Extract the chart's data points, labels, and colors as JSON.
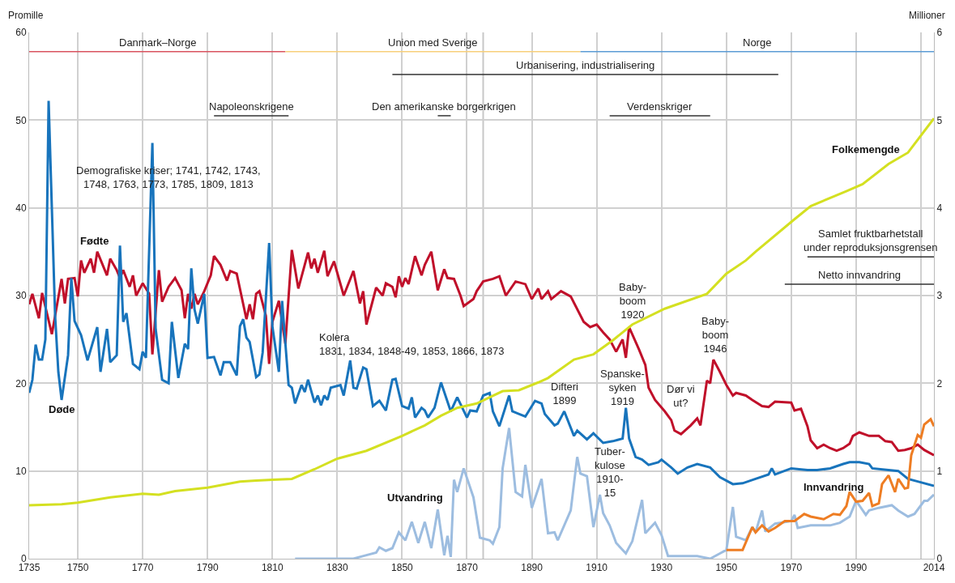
{
  "chart_data": {
    "type": "line",
    "ylabel": "Promille",
    "y2label": "Millioner",
    "xlim": [
      1735,
      2014
    ],
    "xticks": [
      1735,
      1750,
      1770,
      1790,
      1810,
      1830,
      1850,
      1870,
      1890,
      1910,
      1930,
      1950,
      1970,
      1990,
      {
        "value": 2010,
        "label": null
      },
      2014
    ],
    "ylim": [
      0,
      60
    ],
    "yticks": [
      0,
      10,
      20,
      30,
      40,
      50,
      60
    ],
    "y2lim": [
      0,
      6
    ],
    "y2ticks": [
      0,
      1,
      2,
      3,
      4,
      5,
      6
    ],
    "grid": true,
    "legend": false,
    "marker": "none",
    "line_style": "solid",
    "series": [
      {
        "name": "Fødte",
        "color": "#c0102a",
        "x": [
          1735,
          1736,
          1738,
          1739,
          1742,
          1745,
          1746,
          1747,
          1749,
          1750,
          1751,
          1752,
          1754,
          1755,
          1756,
          1759,
          1760,
          1762,
          1763,
          1764,
          1766,
          1767,
          1768,
          1770,
          1772,
          1773,
          1775,
          1776,
          1778,
          1780,
          1782,
          1783,
          1784,
          1785,
          1786,
          1787,
          1789,
          1791,
          1792,
          1794,
          1796,
          1797,
          1799,
          1802,
          1803,
          1804,
          1805,
          1806,
          1808,
          1809,
          1810,
          1812,
          1814,
          1816,
          1818,
          1821,
          1822,
          1823,
          1824,
          1826,
          1827,
          1829,
          1832,
          1835,
          1837,
          1838,
          1839,
          1842,
          1844,
          1845,
          1847,
          1848,
          1849,
          1850,
          1851,
          1852,
          1854,
          1856,
          1857,
          1859,
          1861,
          1863,
          1864,
          1866,
          1868,
          1869,
          1872,
          1873,
          1875,
          1878,
          1880,
          1882,
          1885,
          1888,
          1890,
          1892,
          1893,
          1895,
          1896,
          1899,
          1902,
          1906,
          1908,
          1910,
          1912,
          1914,
          1916,
          1918,
          1919,
          1920,
          1923,
          1925,
          1926,
          1928,
          1931,
          1933,
          1934,
          1936,
          1939,
          1941,
          1942,
          1944,
          1945,
          1946,
          1948,
          1950,
          1952,
          1953,
          1956,
          1958,
          1961,
          1963,
          1965,
          1970,
          1971,
          1973,
          1975,
          1976,
          1978,
          1980,
          1982,
          1984,
          1986,
          1988,
          1989,
          1991,
          1994,
          1997,
          1999,
          2001,
          2003,
          2005,
          2007,
          2009,
          2011,
          2014
        ],
        "values": [
          29.0,
          30.2,
          27.4,
          30.3,
          25.6,
          31.9,
          29.1,
          31.9,
          32.0,
          29.9,
          34.0,
          32.6,
          34.2,
          32.6,
          35.0,
          32.3,
          34.2,
          32.9,
          32.0,
          32.9,
          31.0,
          32.3,
          30.0,
          31.4,
          30.2,
          23.3,
          32.9,
          29.3,
          31.0,
          32.0,
          30.6,
          27.4,
          30.2,
          28.5,
          30.2,
          29.0,
          30.5,
          32.3,
          34.5,
          33.5,
          31.7,
          32.8,
          32.5,
          27.3,
          29.0,
          27.3,
          30.2,
          30.5,
          27.7,
          22.2,
          27.0,
          29.4,
          24.5,
          35.2,
          30.8,
          34.9,
          33.1,
          34.2,
          32.6,
          35.1,
          32.2,
          33.9,
          30.0,
          32.8,
          29.1,
          30.5,
          26.7,
          30.9,
          30.0,
          31.4,
          31.0,
          29.8,
          32.2,
          31.0,
          32.0,
          31.3,
          34.5,
          32.3,
          33.5,
          35.0,
          30.6,
          33.0,
          32.0,
          31.9,
          30.0,
          28.8,
          29.6,
          30.5,
          31.6,
          31.9,
          32.2,
          30.0,
          31.6,
          31.3,
          29.6,
          30.8,
          29.6,
          30.5,
          29.6,
          30.5,
          29.9,
          27.0,
          26.4,
          26.7,
          25.8,
          25.0,
          23.6,
          25.0,
          22.9,
          26.4,
          23.9,
          22.1,
          19.5,
          18.1,
          16.8,
          15.8,
          14.6,
          14.2,
          15.2,
          16.0,
          15.2,
          20.3,
          20.0,
          22.7,
          21.3,
          19.8,
          18.6,
          18.9,
          18.6,
          18.1,
          17.4,
          17.3,
          17.9,
          17.8,
          16.9,
          17.1,
          15.1,
          13.5,
          12.6,
          13.0,
          12.6,
          12.3,
          12.6,
          13.1,
          14.0,
          14.4,
          14.0,
          14.0,
          13.4,
          13.3,
          12.3,
          12.4,
          12.6,
          13.0,
          12.4,
          11.8
        ]
      },
      {
        "name": "Døde",
        "color": "#1874bc",
        "x": [
          1735,
          1736,
          1737,
          1738,
          1739,
          1740,
          1741,
          1743,
          1744,
          1745,
          1747,
          1748,
          1749,
          1751,
          1753,
          1756,
          1757,
          1759,
          1760,
          1762,
          1763,
          1764,
          1765,
          1767,
          1769,
          1770,
          1771,
          1773,
          1774,
          1776,
          1778,
          1779,
          1781,
          1783,
          1784,
          1785,
          1786,
          1787,
          1789,
          1790,
          1792,
          1794,
          1795,
          1797,
          1799,
          1800,
          1801,
          1802,
          1803,
          1805,
          1806,
          1807,
          1809,
          1810,
          1812,
          1813,
          1815,
          1816,
          1817,
          1819,
          1820,
          1821,
          1823,
          1824,
          1825,
          1826,
          1827,
          1828,
          1831,
          1832,
          1834,
          1835,
          1836,
          1838,
          1839,
          1841,
          1843,
          1845,
          1847,
          1848,
          1850,
          1852,
          1853,
          1854,
          1856,
          1857,
          1858,
          1860,
          1862,
          1865,
          1867,
          1870,
          1871,
          1873,
          1875,
          1877,
          1878,
          1880,
          1883,
          1884,
          1888,
          1891,
          1893,
          1894,
          1897,
          1898,
          1900,
          1903,
          1904,
          1907,
          1909,
          1912,
          1915,
          1918,
          1919,
          1920,
          1922,
          1924,
          1926,
          1929,
          1930,
          1933,
          1935,
          1938,
          1941,
          1945,
          1948,
          1952,
          1955,
          1959,
          1963,
          1964,
          1965,
          1970,
          1975,
          1978,
          1982,
          1986,
          1988,
          1991,
          1994,
          1995,
          2000,
          2003,
          2006,
          2009,
          2014
        ],
        "values": [
          18.9,
          20.4,
          24.4,
          22.7,
          22.7,
          25.0,
          52.2,
          27.7,
          21.3,
          18.1,
          23.2,
          32.0,
          27.1,
          25.5,
          22.6,
          26.4,
          21.3,
          26.2,
          22.4,
          23.2,
          35.7,
          27.0,
          28.0,
          22.2,
          21.6,
          23.6,
          22.9,
          47.4,
          26.2,
          20.4,
          20.0,
          27.0,
          20.6,
          24.5,
          23.9,
          33.1,
          28.4,
          26.8,
          30.2,
          22.9,
          23.0,
          20.9,
          22.4,
          22.4,
          20.9,
          26.5,
          27.3,
          25.2,
          24.7,
          20.7,
          21.0,
          23.5,
          36.0,
          26.5,
          21.3,
          29.4,
          19.8,
          19.5,
          17.7,
          19.8,
          19.0,
          20.4,
          17.8,
          18.6,
          17.5,
          18.6,
          18.1,
          19.5,
          19.8,
          18.6,
          22.6,
          19.5,
          19.4,
          21.8,
          21.6,
          17.4,
          18.0,
          16.9,
          20.4,
          20.5,
          17.4,
          17.1,
          18.4,
          16.1,
          17.2,
          16.9,
          16.1,
          17.2,
          20.1,
          16.8,
          18.4,
          16.1,
          16.9,
          16.8,
          18.6,
          18.9,
          16.8,
          15.1,
          18.6,
          16.8,
          16.2,
          18.0,
          17.7,
          16.5,
          15.2,
          15.4,
          16.8,
          14.0,
          14.6,
          13.6,
          14.3,
          13.2,
          13.4,
          13.7,
          17.2,
          13.7,
          11.6,
          11.3,
          10.7,
          11.0,
          11.3,
          10.4,
          9.7,
          10.4,
          10.8,
          10.4,
          9.3,
          8.5,
          8.6,
          9.1,
          9.6,
          10.3,
          9.6,
          10.3,
          10.1,
          10.1,
          10.3,
          10.8,
          11.0,
          11.0,
          10.8,
          10.3,
          10.1,
          10.0,
          9.1,
          8.8,
          8.3
        ]
      },
      {
        "name": "Folkemengde",
        "color": "#d4e021",
        "axis": "y2",
        "x": [
          1735,
          1745,
          1750,
          1760,
          1770,
          1775,
          1780,
          1790,
          1800,
          1805,
          1810,
          1816,
          1823,
          1830,
          1839,
          1850,
          1857,
          1862,
          1867,
          1873,
          1881,
          1886,
          1892,
          1895,
          1903,
          1909,
          1915,
          1921,
          1931,
          1944,
          1950,
          1956,
          1959,
          1971,
          1976,
          1987,
          1992,
          2000,
          2006,
          2014
        ],
        "values": [
          0.61,
          0.62,
          0.64,
          0.7,
          0.74,
          0.73,
          0.77,
          0.81,
          0.88,
          0.89,
          0.9,
          0.91,
          1.02,
          1.14,
          1.23,
          1.4,
          1.52,
          1.63,
          1.72,
          1.77,
          1.91,
          1.92,
          2.01,
          2.06,
          2.27,
          2.33,
          2.49,
          2.67,
          2.85,
          3.02,
          3.25,
          3.4,
          3.5,
          3.87,
          4.02,
          4.19,
          4.27,
          4.5,
          4.63,
          5.02
        ]
      },
      {
        "name": "Utvandring",
        "color": "#9dbde0",
        "x": [
          1817,
          1835,
          1839,
          1842,
          1843,
          1845,
          1847,
          1849,
          1851,
          1853,
          1855,
          1857,
          1859,
          1861,
          1863,
          1864,
          1865,
          1866,
          1867,
          1869,
          1872,
          1874,
          1877,
          1878,
          1880,
          1881,
          1883,
          1885,
          1887,
          1888,
          1890,
          1893,
          1895,
          1897,
          1898,
          1902,
          1904,
          1905,
          1907,
          1909,
          1911,
          1912,
          1914,
          1916,
          1919,
          1921,
          1924,
          1925,
          1928,
          1930,
          1932,
          1941,
          1945,
          1948,
          1950,
          1952,
          1953,
          1956,
          1958,
          1959,
          1961,
          1962,
          1965,
          1970,
          1971,
          1972,
          1976,
          1982,
          1985,
          1988,
          1990,
          1993,
          1994,
          1997,
          2001,
          2003,
          2006,
          2008,
          2011,
          2012,
          2014
        ],
        "values": [
          0,
          0,
          0.4,
          0.7,
          1.3,
          0.9,
          1.2,
          3.0,
          2.1,
          4.2,
          1.8,
          4.2,
          1.2,
          5.6,
          0.4,
          2.6,
          0.2,
          9.0,
          7.6,
          10.3,
          7.0,
          2.4,
          2.1,
          1.7,
          3.6,
          10.3,
          14.9,
          7.6,
          7.1,
          10.7,
          5.8,
          9.1,
          2.9,
          3.0,
          2.1,
          5.5,
          11.6,
          9.7,
          9.4,
          3.6,
          7.3,
          5.2,
          3.8,
          1.8,
          0.6,
          2.0,
          6.7,
          2.9,
          4.1,
          2.7,
          0.3,
          0.3,
          0.0,
          0.6,
          1.0,
          5.9,
          2.5,
          2.1,
          3.6,
          3.0,
          5.5,
          3.1,
          4.0,
          4.3,
          5.0,
          3.5,
          3.8,
          3.8,
          4.1,
          4.8,
          6.6,
          5.0,
          5.5,
          5.8,
          6.1,
          5.5,
          4.8,
          5.1,
          6.6,
          6.6,
          7.3
        ]
      },
      {
        "color": "#d9535f",
        "x": [
          1735,
          1814
        ],
        "values": [
          57.8,
          57.8
        ]
      },
      {
        "color": "#f7cf7a",
        "x": [
          1814,
          1905
        ],
        "values": [
          57.8,
          57.8
        ]
      },
      {
        "color": "#5b9bd5",
        "x": [
          1905,
          2014
        ],
        "values": [
          57.8,
          57.8
        ]
      },
      {
        "color": "#333333",
        "x": [
          1847,
          1966
        ],
        "values": [
          55.2,
          55.2
        ]
      },
      {
        "color": "#333333",
        "x": [
          1792,
          1815
        ],
        "values": [
          50.5,
          50.5
        ]
      },
      {
        "color": "#333333",
        "x": [
          1861,
          1865
        ],
        "values": [
          50.5,
          50.5
        ]
      },
      {
        "color": "#333333",
        "x": [
          1914,
          1945
        ],
        "values": [
          50.5,
          50.5
        ]
      },
      {
        "color": "#333333",
        "x": [
          1975,
          2014
        ],
        "values": [
          34.4,
          34.4
        ]
      },
      {
        "color": "#333333",
        "x": [
          1968,
          2014
        ],
        "values": [
          31.3,
          31.3
        ]
      },
      {
        "name": "Innvandring",
        "color": "#ee7d23",
        "x": [
          1950,
          1955,
          1958,
          1959,
          1961,
          1963,
          1965,
          1968,
          1971,
          1974,
          1976,
          1980,
          1983,
          1985,
          1987,
          1988,
          1990,
          1992,
          1994,
          1995,
          1997,
          1998,
          2000,
          2002,
          2003,
          2005,
          2006,
          2007,
          2009,
          2010,
          2011,
          2013,
          2014
        ],
        "values": [
          1.0,
          1.0,
          3.6,
          3.0,
          3.8,
          3.1,
          3.5,
          4.3,
          4.3,
          5.1,
          4.8,
          4.5,
          5.1,
          5.0,
          6.0,
          7.6,
          6.5,
          6.6,
          7.5,
          6.0,
          6.3,
          8.5,
          9.5,
          7.6,
          9.1,
          8.0,
          8.1,
          11.8,
          14.1,
          13.8,
          15.3,
          15.9,
          15.1
        ]
      }
    ],
    "ref_lines": [
      {
        "axis": "x",
        "value": 1875,
        "label": null,
        "color": "#c8c8c8"
      }
    ],
    "annotations": [
      {
        "text": "Danmark–Norge",
        "x": 1774.5,
        "y": 57.8
      },
      {
        "text": "Union med Sverige",
        "x": 1859.5,
        "y": 57.8
      },
      {
        "text": "Norge",
        "x": 1959.5,
        "y": 57.8
      },
      {
        "text": "Urbanisering, industrialisering",
        "x": 1906.5,
        "y": 55.2
      },
      {
        "text": "Napoleonskrigene",
        "x": 1803.5,
        "y": 50.5
      },
      {
        "text": "Den amerikanske borgerkrigen",
        "x": 1863,
        "y": 50.5
      },
      {
        "text": "Verdenskriger",
        "x": 1929.5,
        "y": 50.5
      },
      {
        "text": "Samlet fruktbarhetstall\nunder reproduksjonsgrensen",
        "x": 1994.5,
        "y": 34.4
      },
      {
        "text": "Netto innvandring",
        "x": 1991,
        "y": 31.3
      },
      "Demografiske kriser; 1741, 1742, 1743,\n1748, 1763, 1773, 1785, 1809, 1813",
      "Kolera\n1831, 1834, 1848-49, 1853, 1866, 1873",
      "Difteri\n1899",
      "Baby-\nboom\n1920",
      "Spanske-\nsyken\n1919",
      "Dør vi\nut?",
      "Baby-\nboom\n1946",
      "Tuber-\nkulose\n1910-\n15"
    ]
  }
}
